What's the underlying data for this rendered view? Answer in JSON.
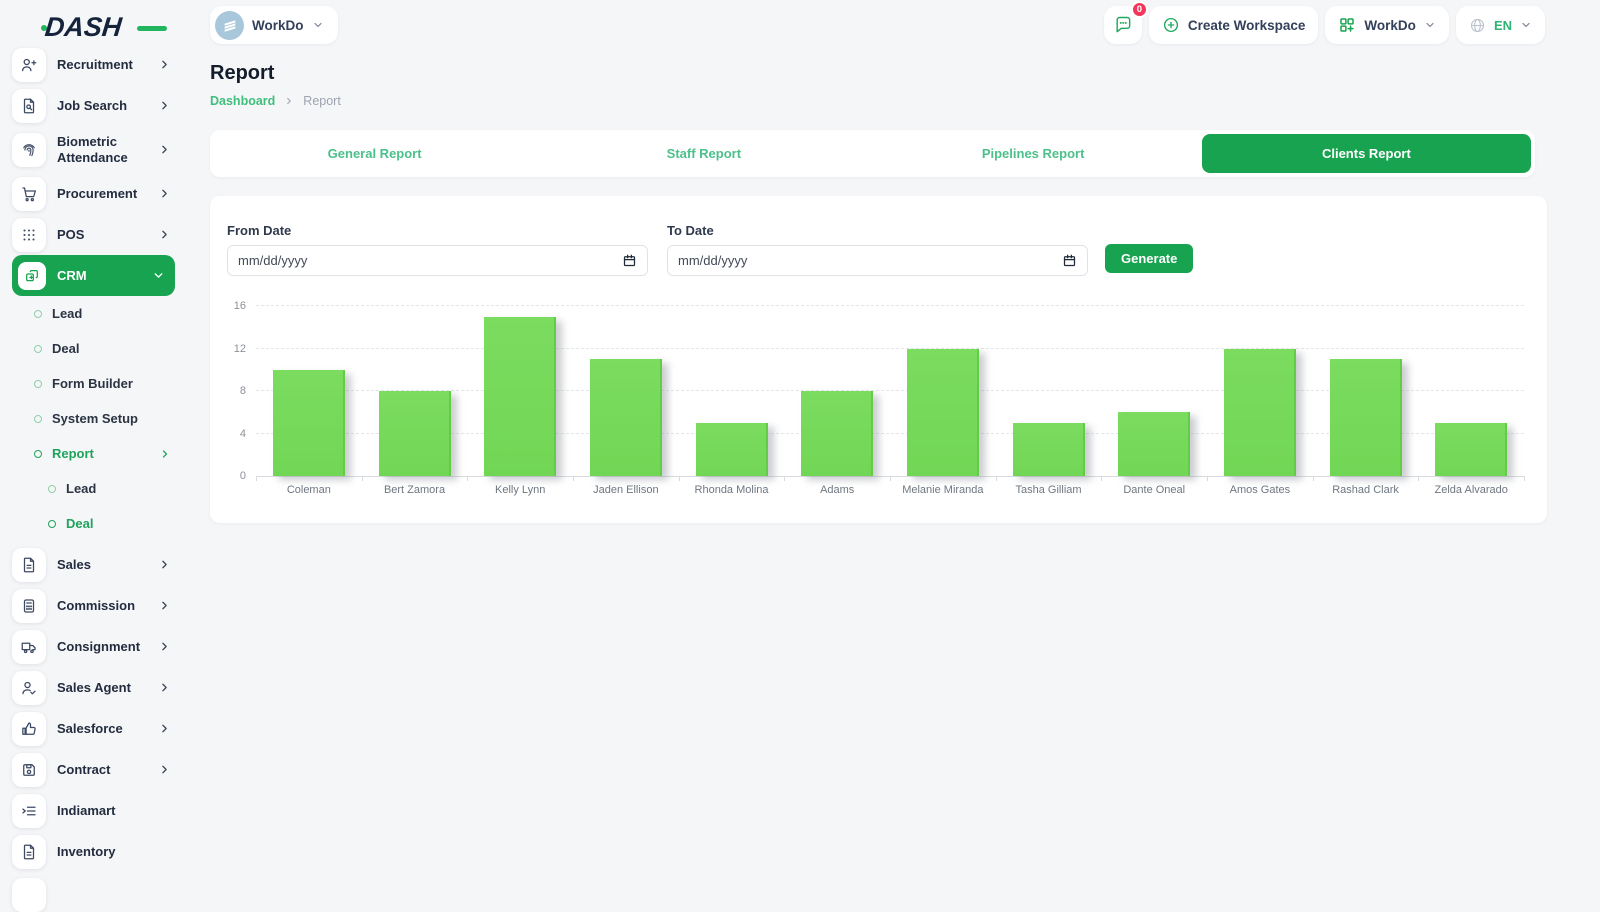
{
  "header": {
    "logo_text": "DASH",
    "workspace": {
      "label": "WorkDo"
    },
    "messages_badge": "0",
    "create_workspace_label": "Create Workspace",
    "company": {
      "label": "WorkDo"
    },
    "language": "EN"
  },
  "sidebar": {
    "top": [
      {
        "label": "Recruitment",
        "icon": "user-plus-icon"
      },
      {
        "label": "Job Search",
        "icon": "doc-search-icon"
      },
      {
        "label": "Biometric Attendance",
        "icon": "fingerprint-icon"
      },
      {
        "label": "Procurement",
        "icon": "cart-icon"
      },
      {
        "label": "POS",
        "icon": "grid-dots-icon"
      },
      {
        "label": "CRM",
        "icon": "crm-squares-icon",
        "active": true
      }
    ],
    "crm_sub": [
      {
        "label": "Lead"
      },
      {
        "label": "Deal"
      },
      {
        "label": "Form Builder"
      },
      {
        "label": "System Setup"
      },
      {
        "label": "Report",
        "active": true
      }
    ],
    "report_sub": [
      {
        "label": "Lead"
      },
      {
        "label": "Deal",
        "active": true
      }
    ],
    "bottom": [
      {
        "label": "Sales",
        "icon": "document-icon"
      },
      {
        "label": "Commission",
        "icon": "calculator-icon"
      },
      {
        "label": "Consignment",
        "icon": "truck-icon"
      },
      {
        "label": "Sales Agent",
        "icon": "user-check-icon"
      },
      {
        "label": "Salesforce",
        "icon": "thumbs-up-icon"
      },
      {
        "label": "Contract",
        "icon": "save-icon"
      },
      {
        "label": "Indiamart",
        "icon": "indent-list-icon"
      },
      {
        "label": "Inventory",
        "icon": "document-icon"
      }
    ]
  },
  "page": {
    "title": "Report",
    "breadcrumb": {
      "link": "Dashboard",
      "current": "Report"
    }
  },
  "tabs": {
    "items": [
      {
        "label": "General Report"
      },
      {
        "label": "Staff Report"
      },
      {
        "label": "Pipelines Report"
      },
      {
        "label": "Clients Report",
        "active": true
      }
    ]
  },
  "filters": {
    "from_label": "From Date",
    "to_label": "To Date",
    "date_placeholder": "mm/dd/yyyy",
    "generate_label": "Generate"
  },
  "chart_data": {
    "type": "bar",
    "categories": [
      "Coleman",
      "Bert Zamora",
      "Kelly Lynn",
      "Jaden Ellison",
      "Rhonda Molina",
      "Adams",
      "Melanie Miranda",
      "Tasha Gilliam",
      "Dante Oneal",
      "Amos Gates",
      "Rashad Clark",
      "Zelda Alvarado"
    ],
    "values": [
      10,
      8,
      15,
      11,
      5,
      8,
      12,
      5,
      6,
      12,
      11,
      5
    ],
    "title": "",
    "xlabel": "",
    "ylabel": "",
    "ylim": [
      0,
      16
    ],
    "yticks": [
      0,
      4,
      8,
      12,
      16
    ],
    "grid": "horizontal-dashed",
    "legend": "none",
    "bar_color": "#76d958"
  },
  "colors": {
    "accent_green": "#17a34f",
    "link_green": "#4cc08a",
    "sidebar_active_green": "#1fa35b",
    "bar_green": "#76d958",
    "badge_pink": "#f5365c",
    "page_bg": "#f5f6f8"
  }
}
